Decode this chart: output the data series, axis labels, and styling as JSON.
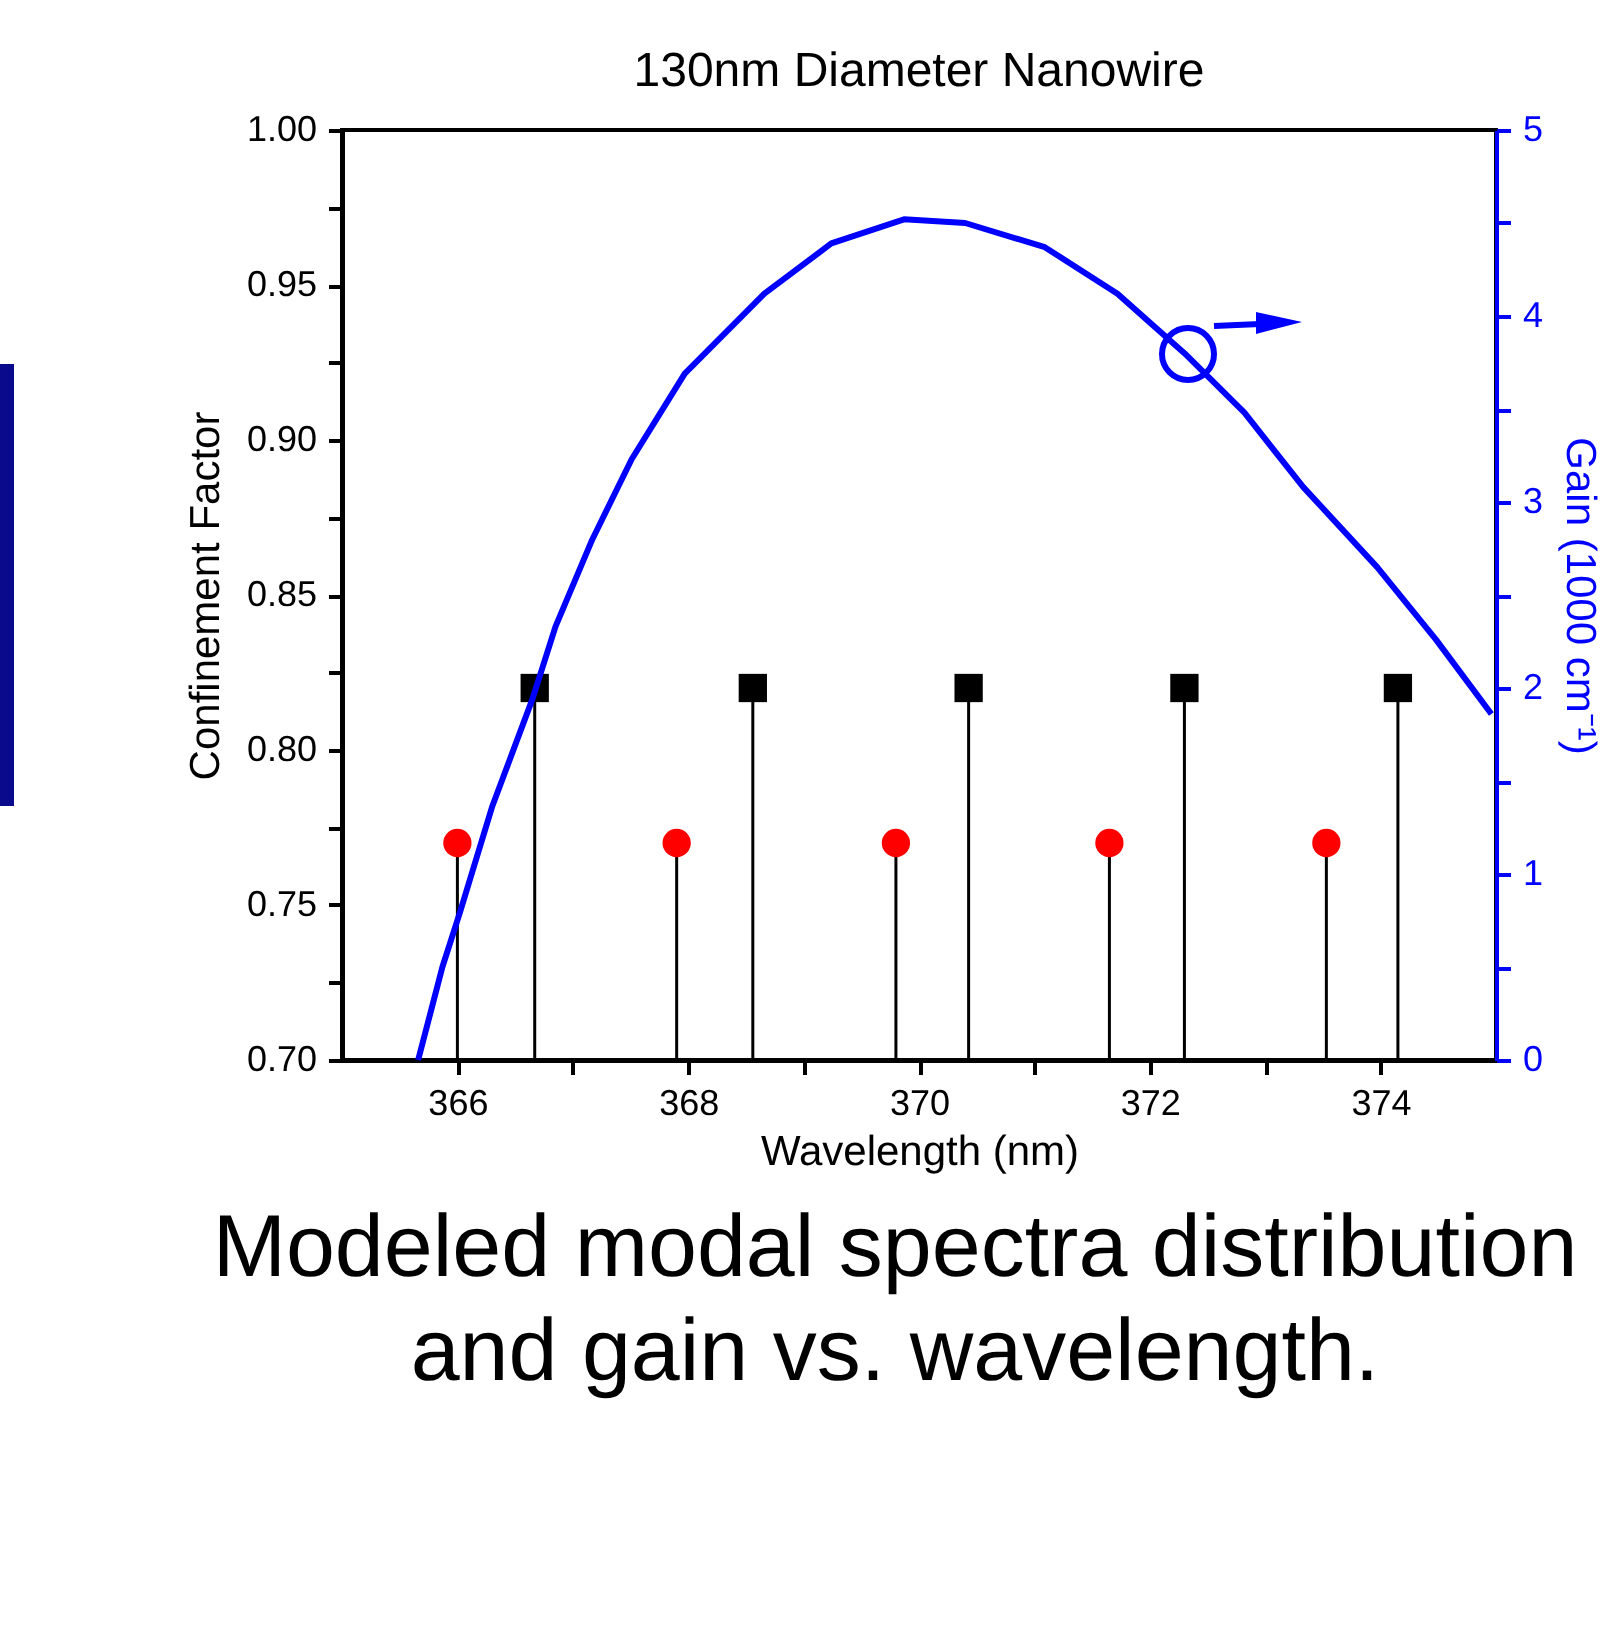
{
  "chart_data": {
    "type": "lollipop",
    "title": "130nm Diameter Nanowire",
    "xlabel": "Wavelength (nm)",
    "ylabel": "Confinement Factor",
    "y2label": "Gain (1000 cm⁻¹)",
    "annotations": [
      "Modeled modal spectra distribution and gain vs. wavelength."
    ],
    "xlim": [
      365,
      375
    ],
    "xticks": [
      366,
      {
        "value": 367,
        "label": null
      },
      368,
      {
        "value": 369,
        "label": null
      },
      370,
      {
        "value": 371,
        "label": null
      },
      372,
      {
        "value": 373,
        "label": null
      },
      374
    ],
    "ylim": [
      0.7,
      1.0
    ],
    "yticks": [
      "0.70",
      {
        "value": 0.725,
        "label": null
      },
      {
        "value": 0.75,
        "label": "0.75"
      },
      {
        "value": 0.775,
        "label": null
      },
      {
        "value": 0.8,
        "label": "0.80"
      },
      {
        "value": 0.825,
        "label": null
      },
      {
        "value": 0.85,
        "label": "0.85"
      },
      {
        "value": 0.875,
        "label": null
      },
      {
        "value": 0.9,
        "label": "0.90"
      },
      {
        "value": 0.925,
        "label": null
      },
      {
        "value": 0.95,
        "label": "0.95"
      },
      {
        "value": 0.975,
        "label": null
      },
      {
        "value": 1.0,
        "label": "1.00"
      }
    ],
    "y2lim": [
      0,
      5
    ],
    "y2ticks": [
      0,
      {
        "value": 0.5,
        "label": null
      },
      1,
      {
        "value": 1.5,
        "label": null
      },
      2,
      {
        "value": 2.5,
        "label": null
      },
      3,
      {
        "value": 3.5,
        "label": null
      },
      4,
      {
        "value": 4.5,
        "label": null
      },
      5
    ],
    "series": [
      {
        "marker": "circle",
        "color": "#ff0000",
        "x": [
          366.0,
          367.9,
          369.8,
          371.65,
          373.53
        ],
        "values": [
          0.77,
          0.77,
          0.77,
          0.77,
          0.77
        ]
      },
      {
        "marker": "square",
        "color": "#000000",
        "x": [
          366.67,
          368.56,
          370.43,
          372.3,
          374.15
        ],
        "values": [
          0.82,
          0.82,
          0.82,
          0.82,
          0.82
        ]
      },
      {
        "type": "line",
        "axis": "y2",
        "color": "#0000ff",
        "x": [
          365.66,
          365.87,
          366.02,
          366.3,
          366.65,
          366.85,
          367.17,
          367.51,
          367.97,
          368.66,
          369.24,
          369.87,
          370.4,
          371.09,
          371.72,
          372.3,
          372.82,
          373.33,
          373.97,
          374.48,
          374.96
        ],
        "values": [
          0,
          0.5,
          0.79,
          1.36,
          1.94,
          2.33,
          2.8,
          3.23,
          3.69,
          4.12,
          4.39,
          4.52,
          4.5,
          4.37,
          4.12,
          3.8,
          3.48,
          3.08,
          2.65,
          2.26,
          1.86
        ]
      }
    ]
  }
}
